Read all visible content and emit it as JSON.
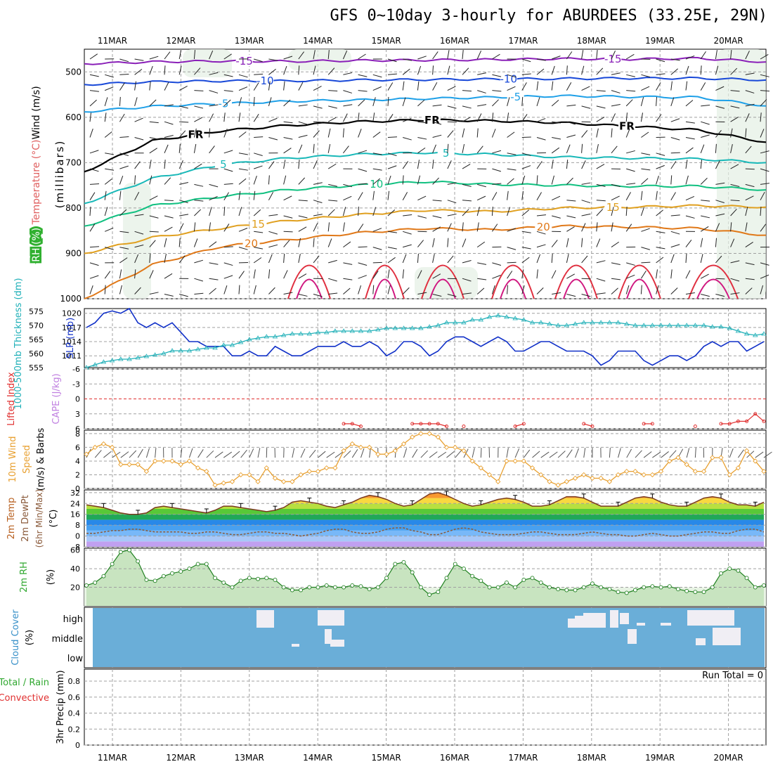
{
  "title": "GFS 0~10day 3-hourly for ABURDEES (33.25E, 29N)",
  "dates": [
    "11MAR",
    "12MAR",
    "13MAR",
    "14MAR",
    "15MAR",
    "16MAR",
    "17MAR",
    "18MAR",
    "19MAR",
    "20MAR"
  ],
  "colors": {
    "temp_minus15": "#8a20b8",
    "temp_minus10": "#1848d8",
    "temp_minus5": "#1ea0e8",
    "temp_fr": "#000000",
    "temp_5": "#18b8b8",
    "temp_10": "#10c080",
    "temp_15": "#e0a020",
    "temp_20": "#e07818",
    "temp_25": "#e03040",
    "temp_30": "#d01880",
    "slp": "#1030c8",
    "thickness": "#20b0b8",
    "lifted": "#e03030",
    "wind": "#e8a030",
    "rh": "#30a830",
    "cloud": "#6aaed8",
    "cloud_gap": "#f0eef4",
    "grid": "#a0a0a0"
  },
  "chart_data": [
    {
      "type": "contour",
      "panel": "upper-air",
      "ylabel_parts": [
        "RH (%)",
        "Temperature (°C)",
        "Wind (m/s)"
      ],
      "yaxis_title": "(millibars)",
      "ytick_labels": [
        "500",
        "600",
        "700",
        "800",
        "900",
        "1000"
      ],
      "ylim": [
        1000,
        450
      ],
      "isotherms": [
        {
          "label": "-15",
          "level_mb": [
            482,
            478,
            476,
            477,
            475,
            474,
            473,
            471,
            472,
            470,
            478
          ]
        },
        {
          "label": "-10",
          "level_mb": [
            528,
            522,
            520,
            520,
            518,
            517,
            516,
            515,
            514,
            514,
            518
          ]
        },
        {
          "label": "-5",
          "level_mb": [
            588,
            576,
            570,
            565,
            562,
            559,
            556,
            553,
            555,
            556,
            575
          ]
        },
        {
          "label": "FR",
          "level_mb": [
            720,
            652,
            630,
            618,
            610,
            606,
            608,
            612,
            620,
            628,
            655
          ]
        },
        {
          "label": "5",
          "level_mb": [
            790,
            735,
            705,
            690,
            682,
            678,
            682,
            688,
            690,
            692,
            700
          ]
        },
        {
          "label": "10",
          "level_mb": [
            840,
            795,
            775,
            760,
            750,
            742,
            748,
            750,
            752,
            752,
            760
          ]
        },
        {
          "label": "15",
          "level_mb": [
            900,
            865,
            845,
            828,
            815,
            805,
            808,
            800,
            798,
            795,
            798
          ]
        },
        {
          "label": "20",
          "level_mb": [
            1000,
            925,
            885,
            870,
            855,
            845,
            848,
            840,
            842,
            845,
            860
          ]
        }
      ],
      "isotherm_labels": [
        {
          "text": "-15",
          "x_day": 2.3
        },
        {
          "text": "-15",
          "x_day": 7.6
        },
        {
          "text": "-10",
          "x_day": 2.6
        },
        {
          "text": "-10",
          "x_day": 6.1
        },
        {
          "text": "-5",
          "x_day": 2.0
        },
        {
          "text": "-5",
          "x_day": 6.2
        },
        {
          "text": "FR",
          "x_day": 1.6
        },
        {
          "text": "FR",
          "x_day": 5.0
        },
        {
          "text": "FR",
          "x_day": 7.8
        },
        {
          "text": "5",
          "x_day": 2.0
        },
        {
          "text": "5",
          "x_day": 5.2
        },
        {
          "text": "10",
          "x_day": 4.2
        },
        {
          "text": "15",
          "x_day": 2.5
        },
        {
          "text": "15",
          "x_day": 7.6
        },
        {
          "text": "20",
          "x_day": 2.4
        },
        {
          "text": "20",
          "x_day": 6.6
        }
      ]
    },
    {
      "type": "line",
      "panel": "slp-thickness",
      "ylabel_left": "1000-500mb Thickness (dm)",
      "ylabel_right": "SLP (mb)",
      "yticks_thickness": [
        "575",
        "570",
        "565",
        "560",
        "555"
      ],
      "yticks_slp": [
        "1020",
        "1017",
        "1014",
        "1011"
      ],
      "ylim_slp": [
        1008.5,
        1021
      ],
      "ylim_thickness": [
        555,
        576
      ],
      "series": [
        {
          "name": "SLP (mb)",
          "values": [
            1017,
            1018,
            1020,
            1020.5,
            1020,
            1021,
            1018,
            1017,
            1018,
            1017,
            1018,
            1016,
            1014,
            1014,
            1013,
            1013,
            1013,
            1011,
            1011,
            1012,
            1011,
            1011,
            1013,
            1012,
            1011,
            1011,
            1012,
            1013,
            1013,
            1013,
            1014,
            1013,
            1013,
            1014,
            1013,
            1011,
            1012,
            1014,
            1014,
            1013,
            1011,
            1012,
            1014,
            1015,
            1015,
            1014,
            1013,
            1014,
            1015,
            1014,
            1012,
            1012,
            1013,
            1014,
            1014,
            1013,
            1012,
            1012,
            1012,
            1011,
            1009,
            1010,
            1012,
            1012,
            1012,
            1010,
            1009,
            1010,
            1011,
            1011,
            1010,
            1011,
            1013,
            1014,
            1013,
            1014,
            1014,
            1012,
            1013,
            1014
          ]
        },
        {
          "name": "1000-500mb Thickness (dm)",
          "values": [
            555,
            556,
            557,
            557.5,
            558,
            558,
            558.5,
            559,
            559.5,
            560,
            561,
            561,
            561,
            561.5,
            562,
            562,
            563,
            563,
            564,
            565,
            565.5,
            566,
            566,
            566.5,
            567,
            567,
            567,
            567.5,
            567.5,
            568,
            568,
            568,
            568,
            568,
            568.5,
            569,
            569,
            569,
            569,
            569,
            569.5,
            570,
            571,
            571,
            571,
            572,
            572,
            573,
            573.5,
            573,
            572.5,
            572,
            571,
            571,
            570.5,
            570,
            570,
            570.5,
            571,
            571,
            571,
            571,
            571,
            570.5,
            570,
            570,
            570,
            570,
            570,
            570,
            570,
            570,
            570,
            569.5,
            569.5,
            569,
            568,
            567,
            566.5,
            567
          ]
        }
      ]
    },
    {
      "type": "line",
      "panel": "stability",
      "ylabel_parts": [
        "Lifted Index",
        "CAPE (J/kg)"
      ],
      "yticks_li": [
        "-6",
        "-3",
        "0",
        "3",
        "6"
      ],
      "ylim": [
        -6,
        6
      ],
      "series": [
        {
          "name": "Lifted Index",
          "values": [
            null,
            null,
            null,
            null,
            null,
            null,
            null,
            null,
            null,
            null,
            null,
            null,
            null,
            null,
            null,
            null,
            null,
            null,
            null,
            null,
            null,
            null,
            null,
            null,
            null,
            null,
            null,
            null,
            null,
            null,
            5,
            5,
            5.5,
            null,
            null,
            null,
            null,
            null,
            5,
            5,
            5,
            5,
            5.5,
            null,
            5.5,
            null,
            null,
            null,
            null,
            null,
            5.5,
            5,
            null,
            null,
            null,
            null,
            null,
            null,
            5,
            5.5,
            null,
            null,
            null,
            null,
            null,
            5,
            5,
            null,
            null,
            null,
            null,
            5.5,
            null,
            null,
            5,
            5,
            4.5,
            4.5,
            3,
            4.5
          ]
        }
      ]
    },
    {
      "type": "line",
      "panel": "wind-10m",
      "ylabel_parts": [
        "10m Wind",
        "Speed",
        "(m/s) & Barbs"
      ],
      "yticks": [
        "0",
        "2",
        "4",
        "6",
        "8"
      ],
      "ylim": [
        0,
        8.5
      ],
      "series": [
        {
          "name": "10m Wind Speed",
          "values": [
            5,
            6,
            6.5,
            6,
            3.5,
            3.5,
            3.5,
            2.5,
            4,
            4,
            4,
            3.5,
            4,
            3,
            2.5,
            0.5,
            0.8,
            1,
            2,
            2,
            1,
            3,
            1.5,
            1,
            1,
            2,
            2.5,
            2.5,
            3,
            3,
            5.5,
            6.5,
            6,
            6,
            5,
            5,
            5.5,
            6.5,
            7.5,
            8,
            8,
            7.5,
            6,
            6,
            5.5,
            4,
            3,
            2,
            1,
            4,
            4,
            4,
            3,
            2,
            1,
            0.5,
            1,
            1.5,
            2,
            1.5,
            1.5,
            1,
            2,
            2.5,
            2.5,
            2,
            2,
            2.5,
            4,
            4.5,
            3.5,
            2.5,
            2.5,
            4.5,
            4.5,
            2,
            3,
            5.5,
            4,
            2.5
          ]
        }
      ]
    },
    {
      "type": "area",
      "panel": "temperature-2m",
      "ylabel_parts": [
        "2m Temp",
        "2m DewPt",
        "(6hr Min/Max)"
      ],
      "yunit": "(°C)",
      "yticks": [
        "32",
        "24",
        "16",
        "8",
        "0",
        "-8"
      ],
      "ylim": [
        -8,
        34
      ],
      "series": [
        {
          "name": "2m Temp",
          "values": [
            23,
            22,
            21,
            19,
            17,
            16,
            16,
            17,
            21,
            22,
            21,
            20,
            19,
            18,
            17,
            19,
            22,
            22,
            21,
            20,
            19,
            18,
            19,
            21,
            25,
            26,
            25,
            24,
            22,
            21,
            23,
            25,
            28,
            30,
            29,
            27,
            24,
            22,
            23,
            27,
            31,
            32,
            30,
            27,
            24,
            22,
            23,
            25,
            27,
            28,
            27,
            25,
            22,
            22,
            23,
            26,
            29,
            29,
            28,
            25,
            22,
            22,
            22,
            25,
            28,
            29,
            28,
            25,
            23,
            22,
            22,
            25,
            28,
            29,
            28,
            25,
            23,
            23,
            22,
            25
          ]
        },
        {
          "name": "2m DewPt",
          "values": [
            2,
            2,
            3,
            4,
            4,
            5,
            5,
            4,
            3,
            3,
            3,
            3,
            2,
            2,
            3,
            3,
            2,
            1,
            1,
            2,
            3,
            3,
            2,
            2,
            1,
            0,
            1,
            2,
            4,
            5,
            5,
            3,
            2,
            2,
            3,
            5,
            6,
            6,
            4,
            3,
            1,
            1,
            3,
            5,
            6,
            5,
            3,
            2,
            1,
            1,
            1,
            2,
            3,
            3,
            2,
            1,
            1,
            1,
            2,
            3,
            2,
            1,
            1,
            0,
            0,
            1,
            2,
            1,
            0,
            0,
            1,
            2,
            3,
            3,
            2,
            2,
            4,
            5,
            5,
            3
          ]
        }
      ]
    },
    {
      "type": "area",
      "panel": "rh-2m",
      "ylabel": "2m RH",
      "yunit": "(%)",
      "yticks": [
        "60",
        "40",
        "20"
      ],
      "ylim": [
        0,
        62
      ],
      "series": [
        {
          "name": "2m RH",
          "values": [
            22,
            25,
            32,
            45,
            58,
            60,
            48,
            28,
            27,
            32,
            35,
            37,
            40,
            45,
            45,
            30,
            25,
            20,
            27,
            30,
            29,
            30,
            28,
            20,
            17,
            17,
            20,
            20,
            22,
            20,
            20,
            22,
            21,
            18,
            20,
            30,
            45,
            47,
            36,
            20,
            12,
            15,
            30,
            45,
            40,
            32,
            27,
            20,
            20,
            25,
            20,
            28,
            30,
            25,
            20,
            18,
            17,
            17,
            20,
            24,
            20,
            18,
            15,
            14,
            17,
            20,
            21,
            20,
            21,
            18,
            16,
            15,
            15,
            20,
            35,
            40,
            38,
            30,
            20,
            22
          ]
        }
      ]
    },
    {
      "type": "heatmap",
      "panel": "cloud-cover",
      "ylabel": "Cloud Cover",
      "yunit": "(%)",
      "levels": [
        "high",
        "middle",
        "low"
      ]
    },
    {
      "type": "bar",
      "panel": "precip",
      "ylabel_parts": [
        "Total / Rain",
        "Convective"
      ],
      "yaxis_title": "3hr Precip (mm)",
      "yticks": [
        "0.8",
        "0.6",
        "0.4",
        "0.2",
        "0"
      ],
      "ylim": [
        0,
        0.95
      ],
      "annotation": "Run Total = 0",
      "values": []
    }
  ]
}
